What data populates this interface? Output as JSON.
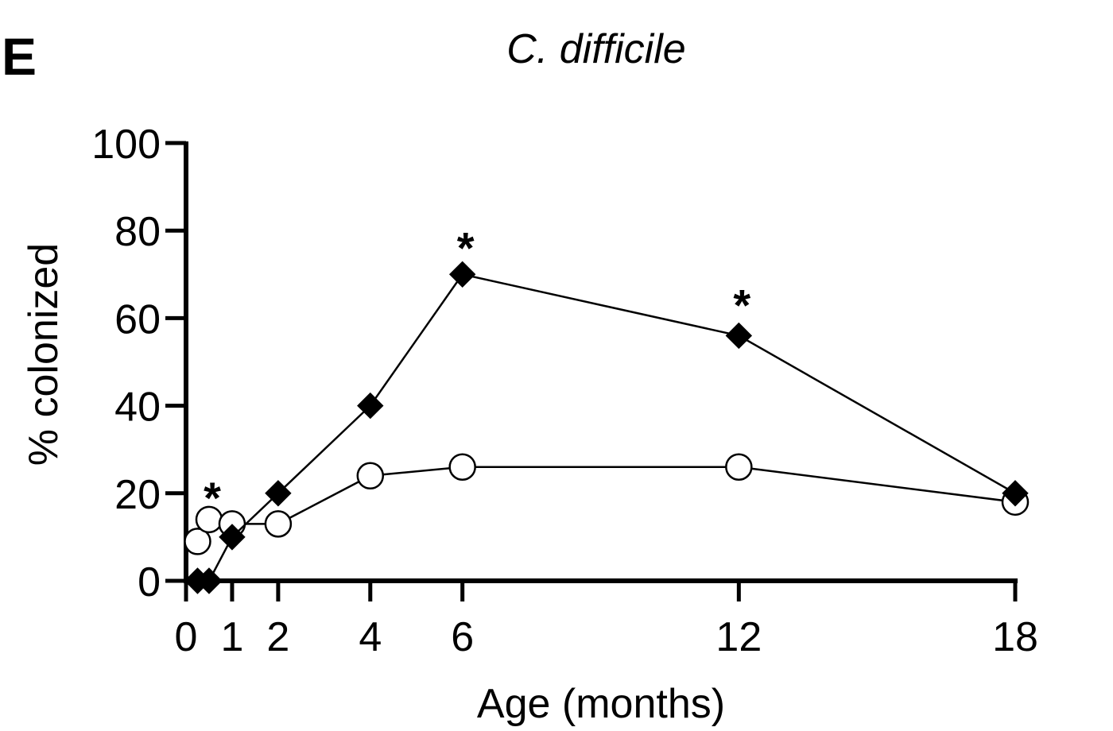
{
  "panel_label": "E",
  "chart_data": {
    "type": "line",
    "title": "C. difficile",
    "xlabel": "Age (months)",
    "ylabel": "% colonized",
    "xlim": [
      0,
      18
    ],
    "ylim": [
      0,
      100
    ],
    "xticks": [
      0,
      1,
      2,
      4,
      6,
      12,
      18
    ],
    "yticks": [
      0,
      20,
      40,
      60,
      80,
      100
    ],
    "grid": false,
    "series": [
      {
        "marker": "filled-diamond",
        "color": "#000000",
        "x": [
          0.25,
          0.5,
          1,
          2,
          4,
          6,
          12,
          18
        ],
        "values": [
          0,
          0,
          10,
          20,
          40,
          70,
          56,
          20
        ]
      },
      {
        "marker": "open-circle",
        "color": "#000000",
        "x": [
          0.25,
          0.5,
          1,
          2,
          4,
          6,
          12,
          18
        ],
        "values": [
          9,
          14,
          13,
          13,
          24,
          26,
          26,
          18
        ]
      }
    ],
    "annotations": [
      {
        "text": "*",
        "x": 0.5,
        "y": 22
      },
      {
        "text": "*",
        "x": 6,
        "y": 79
      },
      {
        "text": "*",
        "x": 12,
        "y": 66
      }
    ]
  }
}
